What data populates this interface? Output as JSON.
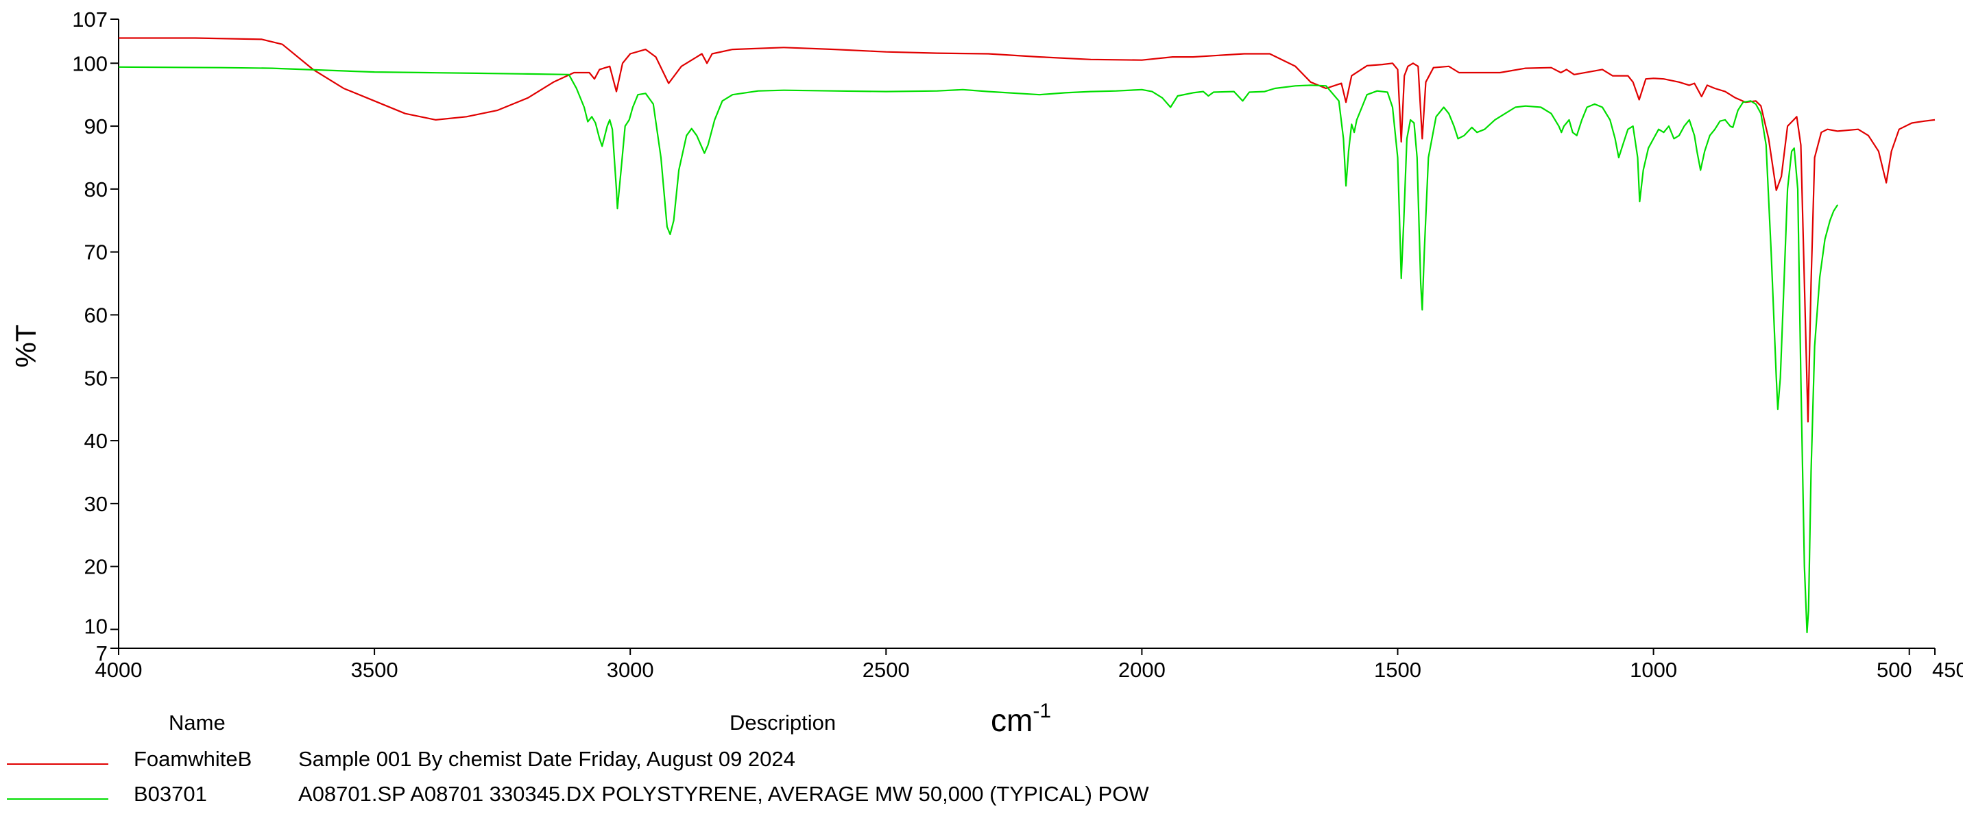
{
  "chart_data": {
    "type": "line",
    "xlabel": "cm",
    "xlabel_sup": "-1",
    "ylabel": "%T",
    "xlim": [
      4000,
      450
    ],
    "ylim": [
      7,
      107
    ],
    "x_ticks": [
      4000,
      3500,
      3000,
      2500,
      2000,
      1500,
      1000,
      500,
      450
    ],
    "x_tick_labels": [
      "4000",
      "3500",
      "3000",
      "2500",
      "2000",
      "1500",
      "1000",
      "500",
      "450"
    ],
    "y_ticks": [
      7,
      10,
      20,
      30,
      40,
      50,
      60,
      70,
      80,
      90,
      100,
      107
    ],
    "y_tick_labels": [
      "7",
      "10",
      "20",
      "30",
      "40",
      "50",
      "60",
      "70",
      "80",
      "90",
      "100",
      "107"
    ],
    "grid": false,
    "series": [
      {
        "name": "FoamwhiteB",
        "color": "#e00000",
        "points": [
          [
            4000,
            104
          ],
          [
            3850,
            104
          ],
          [
            3720,
            103.8
          ],
          [
            3680,
            103
          ],
          [
            3620,
            99
          ],
          [
            3560,
            96
          ],
          [
            3500,
            94
          ],
          [
            3440,
            92
          ],
          [
            3380,
            91
          ],
          [
            3320,
            91.5
          ],
          [
            3260,
            92.5
          ],
          [
            3200,
            94.5
          ],
          [
            3150,
            97
          ],
          [
            3110,
            98.5
          ],
          [
            3080,
            98.5
          ],
          [
            3070,
            97.5
          ],
          [
            3060,
            99
          ],
          [
            3040,
            99.5
          ],
          [
            3027,
            95.5
          ],
          [
            3015,
            100
          ],
          [
            3000,
            101.5
          ],
          [
            2970,
            102.2
          ],
          [
            2950,
            101
          ],
          [
            2925,
            96.8
          ],
          [
            2900,
            99.5
          ],
          [
            2880,
            100.5
          ],
          [
            2860,
            101.5
          ],
          [
            2850,
            100
          ],
          [
            2840,
            101.5
          ],
          [
            2800,
            102.2
          ],
          [
            2700,
            102.5
          ],
          [
            2600,
            102.2
          ],
          [
            2500,
            101.8
          ],
          [
            2400,
            101.6
          ],
          [
            2300,
            101.5
          ],
          [
            2200,
            101
          ],
          [
            2100,
            100.6
          ],
          [
            2000,
            100.5
          ],
          [
            1940,
            101
          ],
          [
            1900,
            101
          ],
          [
            1800,
            101.5
          ],
          [
            1750,
            101.5
          ],
          [
            1700,
            99.5
          ],
          [
            1670,
            97
          ],
          [
            1640,
            96
          ],
          [
            1610,
            96.8
          ],
          [
            1601,
            93.8
          ],
          [
            1590,
            98
          ],
          [
            1560,
            99.6
          ],
          [
            1530,
            99.8
          ],
          [
            1510,
            100
          ],
          [
            1500,
            99
          ],
          [
            1493,
            87.5
          ],
          [
            1487,
            98
          ],
          [
            1480,
            99.5
          ],
          [
            1470,
            100
          ],
          [
            1460,
            99.5
          ],
          [
            1452,
            88
          ],
          [
            1445,
            97
          ],
          [
            1430,
            99.3
          ],
          [
            1400,
            99.5
          ],
          [
            1380,
            98.5
          ],
          [
            1300,
            98.5
          ],
          [
            1250,
            99.2
          ],
          [
            1200,
            99.3
          ],
          [
            1181,
            98.5
          ],
          [
            1170,
            99
          ],
          [
            1155,
            98.2
          ],
          [
            1100,
            99
          ],
          [
            1080,
            98
          ],
          [
            1050,
            98
          ],
          [
            1040,
            97
          ],
          [
            1028,
            94.2
          ],
          [
            1015,
            97.5
          ],
          [
            1000,
            97.6
          ],
          [
            980,
            97.5
          ],
          [
            950,
            97
          ],
          [
            930,
            96.5
          ],
          [
            920,
            96.8
          ],
          [
            906,
            94.7
          ],
          [
            895,
            96.5
          ],
          [
            880,
            96
          ],
          [
            860,
            95.5
          ],
          [
            840,
            94.5
          ],
          [
            820,
            93.8
          ],
          [
            800,
            94
          ],
          [
            790,
            93.2
          ],
          [
            775,
            88
          ],
          [
            760,
            79.8
          ],
          [
            750,
            82
          ],
          [
            738,
            90
          ],
          [
            720,
            91.5
          ],
          [
            712,
            87
          ],
          [
            705,
            65
          ],
          [
            698,
            43
          ],
          [
            692,
            65
          ],
          [
            685,
            85
          ],
          [
            672,
            89
          ],
          [
            660,
            89.5
          ],
          [
            640,
            89.2
          ],
          [
            600,
            89.5
          ],
          [
            580,
            88.5
          ],
          [
            560,
            86
          ],
          [
            545,
            81
          ],
          [
            535,
            86
          ],
          [
            520,
            89.5
          ],
          [
            495,
            90.5
          ],
          [
            470,
            90.8
          ],
          [
            450,
            91
          ]
        ]
      },
      {
        "name": "B03701",
        "color": "#00dd00",
        "points": [
          [
            4000,
            99.4
          ],
          [
            3800,
            99.3
          ],
          [
            3700,
            99.2
          ],
          [
            3600,
            98.9
          ],
          [
            3500,
            98.6
          ],
          [
            3400,
            98.5
          ],
          [
            3300,
            98.4
          ],
          [
            3200,
            98.3
          ],
          [
            3120,
            98.2
          ],
          [
            3105,
            96
          ],
          [
            3090,
            93
          ],
          [
            3083,
            90.7
          ],
          [
            3075,
            91.5
          ],
          [
            3068,
            90.5
          ],
          [
            3060,
            88
          ],
          [
            3055,
            86.8
          ],
          [
            3045,
            90
          ],
          [
            3040,
            91
          ],
          [
            3035,
            89.5
          ],
          [
            3027,
            80
          ],
          [
            3025,
            76.9
          ],
          [
            3018,
            83
          ],
          [
            3010,
            90
          ],
          [
            3002,
            91
          ],
          [
            2995,
            93
          ],
          [
            2985,
            95
          ],
          [
            2970,
            95.2
          ],
          [
            2955,
            93.5
          ],
          [
            2940,
            85
          ],
          [
            2928,
            74
          ],
          [
            2922,
            72.8
          ],
          [
            2915,
            75
          ],
          [
            2905,
            83
          ],
          [
            2890,
            88.5
          ],
          [
            2880,
            89.6
          ],
          [
            2870,
            88.5
          ],
          [
            2855,
            85.7
          ],
          [
            2848,
            87
          ],
          [
            2835,
            91
          ],
          [
            2820,
            94
          ],
          [
            2800,
            95
          ],
          [
            2750,
            95.6
          ],
          [
            2700,
            95.7
          ],
          [
            2600,
            95.6
          ],
          [
            2500,
            95.5
          ],
          [
            2400,
            95.6
          ],
          [
            2350,
            95.8
          ],
          [
            2300,
            95.5
          ],
          [
            2200,
            95
          ],
          [
            2150,
            95.3
          ],
          [
            2100,
            95.5
          ],
          [
            2050,
            95.6
          ],
          [
            2000,
            95.8
          ],
          [
            1980,
            95.5
          ],
          [
            1960,
            94.5
          ],
          [
            1944,
            93
          ],
          [
            1930,
            94.8
          ],
          [
            1900,
            95.3
          ],
          [
            1880,
            95.5
          ],
          [
            1870,
            94.8
          ],
          [
            1860,
            95.4
          ],
          [
            1820,
            95.5
          ],
          [
            1803,
            94
          ],
          [
            1790,
            95.4
          ],
          [
            1760,
            95.5
          ],
          [
            1740,
            96
          ],
          [
            1700,
            96.4
          ],
          [
            1670,
            96.5
          ],
          [
            1640,
            96.4
          ],
          [
            1615,
            94
          ],
          [
            1606,
            88
          ],
          [
            1601,
            80.5
          ],
          [
            1596,
            86
          ],
          [
            1590,
            90.3
          ],
          [
            1585,
            89
          ],
          [
            1580,
            91
          ],
          [
            1570,
            93
          ],
          [
            1560,
            95
          ],
          [
            1540,
            95.6
          ],
          [
            1520,
            95.4
          ],
          [
            1510,
            93
          ],
          [
            1500,
            85
          ],
          [
            1493,
            65.8
          ],
          [
            1488,
            75
          ],
          [
            1482,
            88
          ],
          [
            1475,
            91
          ],
          [
            1468,
            90.5
          ],
          [
            1462,
            85
          ],
          [
            1455,
            65
          ],
          [
            1452,
            60.8
          ],
          [
            1448,
            70
          ],
          [
            1440,
            85
          ],
          [
            1425,
            91.5
          ],
          [
            1410,
            93
          ],
          [
            1400,
            92
          ],
          [
            1390,
            90
          ],
          [
            1382,
            88
          ],
          [
            1370,
            88.5
          ],
          [
            1355,
            89.8
          ],
          [
            1345,
            89
          ],
          [
            1330,
            89.5
          ],
          [
            1310,
            91
          ],
          [
            1290,
            92
          ],
          [
            1270,
            93
          ],
          [
            1250,
            93.2
          ],
          [
            1220,
            93
          ],
          [
            1200,
            92
          ],
          [
            1185,
            90
          ],
          [
            1180,
            89
          ],
          [
            1175,
            90
          ],
          [
            1165,
            91
          ],
          [
            1158,
            89
          ],
          [
            1150,
            88.5
          ],
          [
            1140,
            91
          ],
          [
            1130,
            93
          ],
          [
            1115,
            93.5
          ],
          [
            1100,
            93
          ],
          [
            1085,
            91
          ],
          [
            1075,
            88
          ],
          [
            1068,
            85
          ],
          [
            1060,
            87
          ],
          [
            1050,
            89.5
          ],
          [
            1040,
            90
          ],
          [
            1031,
            85
          ],
          [
            1027,
            78
          ],
          [
            1020,
            83
          ],
          [
            1010,
            86.5
          ],
          [
            1000,
            88
          ],
          [
            990,
            89.5
          ],
          [
            980,
            89
          ],
          [
            970,
            90
          ],
          [
            960,
            88
          ],
          [
            950,
            88.5
          ],
          [
            940,
            90
          ],
          [
            930,
            91
          ],
          [
            920,
            88.5
          ],
          [
            915,
            86
          ],
          [
            908,
            83
          ],
          [
            900,
            86
          ],
          [
            890,
            88.5
          ],
          [
            880,
            89.5
          ],
          [
            870,
            90.8
          ],
          [
            860,
            91
          ],
          [
            850,
            90
          ],
          [
            845,
            89.8
          ],
          [
            835,
            92.5
          ],
          [
            825,
            93.8
          ],
          [
            810,
            94
          ],
          [
            800,
            93.5
          ],
          [
            790,
            92
          ],
          [
            780,
            87
          ],
          [
            770,
            70
          ],
          [
            760,
            50
          ],
          [
            757,
            45
          ],
          [
            752,
            50
          ],
          [
            745,
            65
          ],
          [
            738,
            80
          ],
          [
            730,
            86
          ],
          [
            725,
            86.5
          ],
          [
            718,
            80
          ],
          [
            712,
            50
          ],
          [
            705,
            20
          ],
          [
            700,
            9.5
          ],
          [
            697,
            13
          ],
          [
            692,
            35
          ],
          [
            685,
            55
          ],
          [
            675,
            66
          ],
          [
            665,
            72
          ],
          [
            655,
            75
          ],
          [
            648,
            76.5
          ],
          [
            640,
            77.5
          ]
        ]
      }
    ]
  },
  "legend": {
    "name_header": "Name",
    "description_header": "Description",
    "entries": [
      {
        "name": "FoamwhiteB",
        "description": "Sample 001 By chemist Date Friday, August 09 2024",
        "color": "#e00000"
      },
      {
        "name": "B03701",
        "description": "A08701.SP A08701 330345.DX POLYSTYRENE, AVERAGE MW 50,000 (TYPICAL) POW",
        "color": "#00dd00"
      }
    ]
  }
}
